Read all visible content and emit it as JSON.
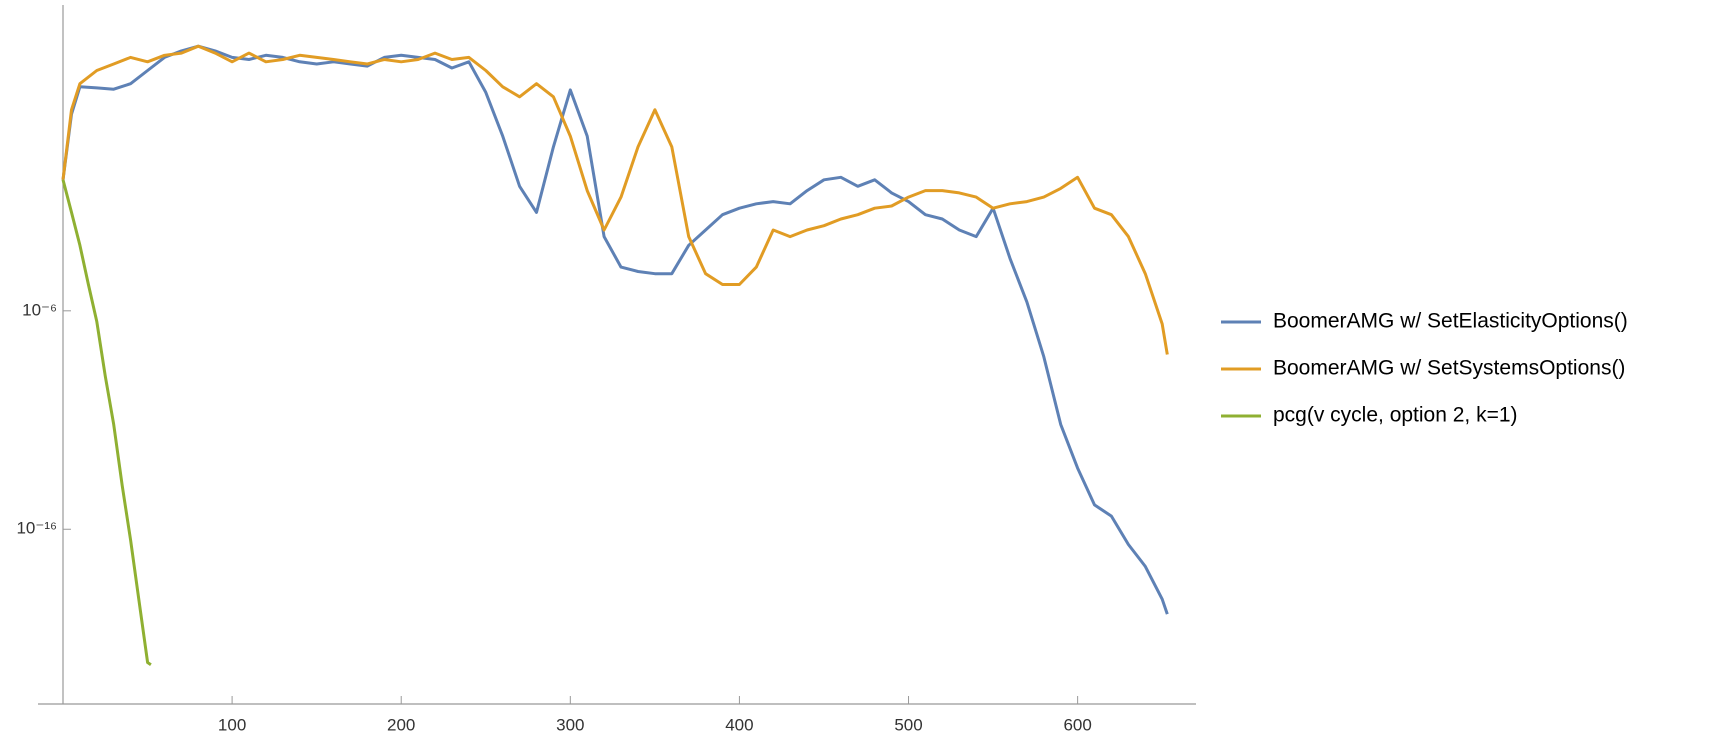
{
  "chart_data": {
    "type": "line",
    "log_y": true,
    "legend": "right",
    "grid": false,
    "xlim": [
      0,
      670
    ],
    "xticks": [
      100,
      200,
      300,
      400,
      500,
      600
    ],
    "ylim": [
      1e-24,
      100000000.0
    ],
    "yticks": [
      {
        "value": 1e-06,
        "label": "10⁻⁶"
      },
      {
        "value": 1e-16,
        "label": "10⁻¹⁶"
      }
    ],
    "series": [
      {
        "name": "BoomerAMG w/ SetElasticityOptions()",
        "color": "#5e81b5",
        "x": [
          0,
          5,
          10,
          20,
          30,
          40,
          50,
          60,
          70,
          80,
          90,
          100,
          110,
          120,
          130,
          140,
          150,
          160,
          170,
          180,
          190,
          200,
          210,
          220,
          230,
          240,
          250,
          260,
          270,
          280,
          290,
          300,
          310,
          320,
          330,
          340,
          350,
          360,
          370,
          380,
          390,
          400,
          410,
          420,
          430,
          440,
          450,
          460,
          470,
          480,
          490,
          500,
          510,
          520,
          530,
          540,
          550,
          560,
          570,
          580,
          590,
          600,
          610,
          620,
          630,
          640,
          650,
          653
        ],
        "values": [
          1,
          1000.0,
          18000.0,
          16000.0,
          14000.0,
          25000.0,
          100000.0,
          400000.0,
          790000.0,
          1300000.0,
          790000.0,
          400000.0,
          320000.0,
          500000.0,
          400000.0,
          250000.0,
          200000.0,
          250000.0,
          200000.0,
          160000.0,
          400000.0,
          500000.0,
          400000.0,
          320000.0,
          130000.0,
          250000.0,
          10000.0,
          100,
          0.5,
          0.032,
          32,
          13000.0,
          100,
          0.0025,
          0.0001,
          6.3e-05,
          5e-05,
          5e-05,
          0.001,
          0.005,
          0.025,
          0.05,
          0.079,
          0.1,
          0.079,
          0.32,
          1,
          1.3,
          0.5,
          1,
          0.25,
          0.1,
          0.025,
          0.016,
          0.005,
          0.0025,
          0.05,
          0.00025,
          2.5e-06,
          7.9e-09,
          6.3e-12,
          6.3e-14,
          1.3e-15,
          4e-16,
          2e-17,
          2e-18,
          6.3e-20,
          1.3e-20
        ]
      },
      {
        "name": "BoomerAMG w/ SetSystemsOptions()",
        "color": "#e19c24",
        "x": [
          0,
          5,
          10,
          20,
          30,
          40,
          50,
          60,
          70,
          80,
          90,
          100,
          110,
          120,
          130,
          140,
          150,
          160,
          170,
          180,
          190,
          200,
          210,
          220,
          230,
          240,
          250,
          260,
          270,
          280,
          290,
          300,
          310,
          320,
          330,
          340,
          350,
          360,
          370,
          380,
          390,
          400,
          410,
          420,
          430,
          440,
          450,
          460,
          470,
          480,
          490,
          500,
          510,
          520,
          530,
          540,
          550,
          560,
          570,
          580,
          590,
          600,
          610,
          620,
          630,
          640,
          650,
          653
        ],
        "values": [
          1,
          1600.0,
          25000.0,
          100000.0,
          200000.0,
          400000.0,
          250000.0,
          500000.0,
          630000.0,
          1300000.0,
          630000.0,
          250000.0,
          630000.0,
          250000.0,
          320000.0,
          500000.0,
          400000.0,
          320000.0,
          250000.0,
          200000.0,
          320000.0,
          250000.0,
          320000.0,
          630000.0,
          320000.0,
          400000.0,
          100000.0,
          18000.0,
          6300.0,
          25000.0,
          6300.0,
          100,
          0.32,
          0.005,
          0.16,
          32,
          1600.0,
          32,
          0.0025,
          5e-05,
          1.6e-05,
          1.6e-05,
          0.0001,
          0.005,
          0.0025,
          0.005,
          0.0079,
          0.016,
          0.025,
          0.05,
          0.063,
          0.16,
          0.32,
          0.32,
          0.25,
          0.16,
          0.05,
          0.079,
          0.1,
          0.16,
          0.4,
          1.3,
          0.05,
          0.025,
          0.0025,
          5e-05,
          2.5e-07,
          1e-08
        ]
      },
      {
        "name": "pcg(v cycle, option 2, k=1)",
        "color": "#8fb032",
        "x": [
          0,
          5,
          10,
          15,
          20,
          25,
          30,
          35,
          40,
          45,
          50,
          52
        ],
        "values": [
          1,
          0.032,
          0.001,
          1.6e-05,
          3.2e-07,
          1e-09,
          6.3e-12,
          1e-14,
          3.2e-17,
          5e-20,
          7.9e-23,
          6.3e-23
        ]
      }
    ]
  }
}
